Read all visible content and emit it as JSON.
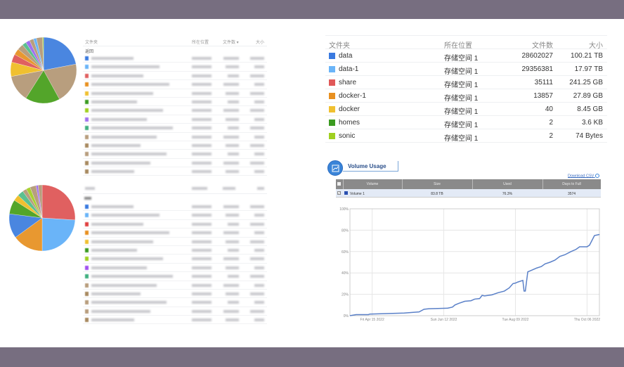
{
  "pie_top": {
    "slices": [
      {
        "pct": 22,
        "color": "#4a86e0"
      },
      {
        "pct": 20,
        "color": "#b89e7e"
      },
      {
        "pct": 17,
        "color": "#53a52a"
      },
      {
        "pct": 13,
        "color": "#b89e7e"
      },
      {
        "pct": 7,
        "color": "#f0c030"
      },
      {
        "pct": 4,
        "color": "#e06060"
      },
      {
        "pct": 3,
        "color": "#e89830"
      },
      {
        "pct": 3,
        "color": "#b89e7e"
      },
      {
        "pct": 2,
        "color": "#5cc090"
      },
      {
        "pct": 2,
        "color": "#a070f0"
      },
      {
        "pct": 2,
        "color": "#b89e7e"
      },
      {
        "pct": 1.5,
        "color": "#6ab4f8"
      },
      {
        "pct": 3,
        "color": "#b89e7e"
      },
      {
        "pct": 0.5,
        "color": "#a8d030"
      }
    ]
  },
  "table_top": {
    "headers": {
      "folder": "文件夹",
      "location": "所在位置",
      "files": "文件数 ▾",
      "size": "大小"
    },
    "back": "返回",
    "row_colors": [
      "#3a7ae0",
      "#6ab4f8",
      "#e06060",
      "#e89020",
      "#f0c030",
      "#3a9a20",
      "#a0d020",
      "#a070f0",
      "#40b080",
      "#b89e7e",
      "#a88a60",
      "#b89e7e",
      "#a88a60",
      "#a88a60"
    ]
  },
  "pie_bottom": {
    "slices": [
      {
        "pct": 26,
        "color": "#e06060"
      },
      {
        "pct": 24,
        "color": "#6ab4f8"
      },
      {
        "pct": 15,
        "color": "#e89830"
      },
      {
        "pct": 12,
        "color": "#4a86e0"
      },
      {
        "pct": 7,
        "color": "#53a52a"
      },
      {
        "pct": 3,
        "color": "#f0c030"
      },
      {
        "pct": 3,
        "color": "#5cc090"
      },
      {
        "pct": 2,
        "color": "#b89e7e"
      },
      {
        "pct": 2,
        "color": "#a8d030"
      },
      {
        "pct": 3,
        "color": "#b89e7e"
      },
      {
        "pct": 1,
        "color": "#a070f0"
      },
      {
        "pct": 2,
        "color": "#b89e7e"
      }
    ]
  },
  "table_bottom": {
    "row_colors": [
      "#3a7ae0",
      "#6ab4f8",
      "#e04040",
      "#e89020",
      "#f0c030",
      "#3a9a20",
      "#a0d020",
      "#a050f0",
      "#40b080",
      "#b89e7e",
      "#a88a60",
      "#b89e7e",
      "#b89e7e",
      "#a88a60"
    ]
  },
  "folders": {
    "headers": {
      "folder": "文件夹",
      "location": "所在位置",
      "files": "文件数",
      "size": "大小"
    },
    "rows": [
      {
        "name": "data",
        "location": "存储空间 1",
        "files": "28602027",
        "size": "100.21 TB",
        "color": "#3a7ae0"
      },
      {
        "name": "data-1",
        "location": "存储空间 1",
        "files": "29356381",
        "size": "17.97 TB",
        "color": "#6ab4f8"
      },
      {
        "name": "share",
        "location": "存储空间 1",
        "files": "35111",
        "size": "241.25 GB",
        "color": "#e05858"
      },
      {
        "name": "docker-1",
        "location": "存储空间 1",
        "files": "13857",
        "size": "27.89 GB",
        "color": "#e89020"
      },
      {
        "name": "docker",
        "location": "存储空间 1",
        "files": "40",
        "size": "8.45 GB",
        "color": "#f0c030"
      },
      {
        "name": "homes",
        "location": "存储空间 1",
        "files": "2",
        "size": "3.6 KB",
        "color": "#3a9a20"
      },
      {
        "name": "sonic",
        "location": "存储空间 1",
        "files": "2",
        "size": "74 Bytes",
        "color": "#a0d020"
      }
    ]
  },
  "volume_usage": {
    "title": "Volume Usage",
    "download": "Download CSV",
    "headers": [
      "Volume",
      "Size",
      "Used",
      "Days to Full"
    ],
    "row": {
      "volume": "Volume 1",
      "size": "83.8 TB",
      "used": "76.3%",
      "days": "3574"
    }
  },
  "chart_data": {
    "type": "line",
    "ylim": [
      0,
      100
    ],
    "yticks": [
      "0%",
      "20%",
      "40%",
      "60%",
      "80%",
      "100%"
    ],
    "xlim": [
      "2022-03-28",
      "2022-10-16"
    ],
    "xticks": [
      {
        "date": "2022-04-15",
        "label": "Fri Apr 15 2022"
      },
      {
        "date": "2022-06-12",
        "label": "Sun Jun 12 2022"
      },
      {
        "date": "2022-08-09",
        "label": "Tue Aug 09 2022"
      },
      {
        "date": "2022-10-06",
        "label": "Thu Oct 06 2022"
      }
    ],
    "grid": true,
    "color": "#5a80c8",
    "points": [
      [
        "2022-03-28",
        0
      ],
      [
        "2022-04-02",
        1
      ],
      [
        "2022-04-12",
        1
      ],
      [
        "2022-04-13",
        1.5
      ],
      [
        "2022-05-11",
        2.5
      ],
      [
        "2022-05-23",
        3.5
      ],
      [
        "2022-05-27",
        6
      ],
      [
        "2022-05-31",
        6.5
      ],
      [
        "2022-06-15",
        7
      ],
      [
        "2022-06-19",
        8
      ],
      [
        "2022-06-21",
        10
      ],
      [
        "2022-06-24",
        11.5
      ],
      [
        "2022-06-29",
        13.5
      ],
      [
        "2022-07-04",
        14
      ],
      [
        "2022-07-07",
        15.5
      ],
      [
        "2022-07-11",
        16
      ],
      [
        "2022-07-13",
        19
      ],
      [
        "2022-07-15",
        18.5
      ],
      [
        "2022-07-21",
        19.5
      ],
      [
        "2022-07-26",
        21.5
      ],
      [
        "2022-07-31",
        23
      ],
      [
        "2022-08-04",
        26
      ],
      [
        "2022-08-07",
        30
      ],
      [
        "2022-08-09",
        30.5
      ],
      [
        "2022-08-11",
        31.5
      ],
      [
        "2022-08-15",
        33
      ],
      [
        "2022-08-16",
        23
      ],
      [
        "2022-08-17",
        23
      ],
      [
        "2022-08-19",
        41
      ],
      [
        "2022-08-22",
        42.5
      ],
      [
        "2022-08-26",
        44.5
      ],
      [
        "2022-08-30",
        46
      ],
      [
        "2022-09-02",
        48.5
      ],
      [
        "2022-09-06",
        50
      ],
      [
        "2022-09-10",
        52
      ],
      [
        "2022-09-14",
        55.5
      ],
      [
        "2022-09-18",
        57
      ],
      [
        "2022-09-23",
        60
      ],
      [
        "2022-09-27",
        62
      ],
      [
        "2022-09-30",
        64.5
      ],
      [
        "2022-10-06",
        64.5
      ],
      [
        "2022-10-08",
        66
      ],
      [
        "2022-10-12",
        75
      ],
      [
        "2022-10-16",
        76
      ]
    ]
  }
}
